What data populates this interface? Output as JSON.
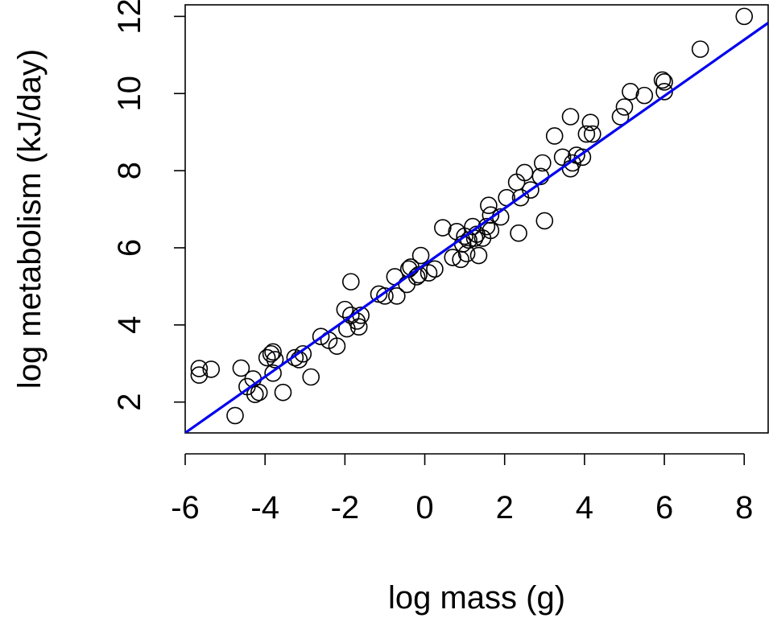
{
  "chart_data": {
    "type": "scatter",
    "title": "",
    "xlabel": "log mass (g)",
    "ylabel": "log metabolism (kJ/day)",
    "xlim": [
      -6.0,
      8.6
    ],
    "ylim": [
      1.2,
      12.3
    ],
    "x_ticks": [
      -6,
      -4,
      -2,
      0,
      2,
      4,
      6,
      8
    ],
    "x_tick_labels": [
      "-6",
      "-4",
      "-2",
      "0",
      "2",
      "4",
      "6",
      "8"
    ],
    "y_ticks": [
      2,
      4,
      6,
      8,
      10,
      12
    ],
    "y_tick_labels": [
      "2",
      "4",
      "6",
      "8",
      "10",
      "12"
    ],
    "grid": false,
    "legend": "none",
    "point_style": "open-circle",
    "point_color": "#000000",
    "fit_line": {
      "color": "#0000ee",
      "intercept": 5.57,
      "slope": 0.728,
      "x_from": -6.0,
      "x_to": 8.6
    },
    "points": [
      {
        "x": -5.65,
        "y": 2.87
      },
      {
        "x": -5.65,
        "y": 2.7
      },
      {
        "x": -5.35,
        "y": 2.85
      },
      {
        "x": -4.75,
        "y": 1.65
      },
      {
        "x": -4.6,
        "y": 2.88
      },
      {
        "x": -4.45,
        "y": 2.4
      },
      {
        "x": -4.3,
        "y": 2.6
      },
      {
        "x": -4.25,
        "y": 2.2
      },
      {
        "x": -4.15,
        "y": 2.25
      },
      {
        "x": -3.95,
        "y": 3.15
      },
      {
        "x": -3.85,
        "y": 3.25
      },
      {
        "x": -3.8,
        "y": 3.3
      },
      {
        "x": -3.8,
        "y": 2.75
      },
      {
        "x": -3.75,
        "y": 3.1
      },
      {
        "x": -3.55,
        "y": 2.25
      },
      {
        "x": -3.25,
        "y": 3.15
      },
      {
        "x": -3.15,
        "y": 3.1
      },
      {
        "x": -3.05,
        "y": 3.25
      },
      {
        "x": -2.85,
        "y": 2.65
      },
      {
        "x": -2.6,
        "y": 3.7
      },
      {
        "x": -2.4,
        "y": 3.6
      },
      {
        "x": -2.2,
        "y": 3.45
      },
      {
        "x": -2.0,
        "y": 4.4
      },
      {
        "x": -1.95,
        "y": 3.9
      },
      {
        "x": -1.85,
        "y": 4.25
      },
      {
        "x": -1.85,
        "y": 5.12
      },
      {
        "x": -1.7,
        "y": 4.1
      },
      {
        "x": -1.65,
        "y": 3.95
      },
      {
        "x": -1.6,
        "y": 4.25
      },
      {
        "x": -1.15,
        "y": 4.8
      },
      {
        "x": -1.0,
        "y": 4.75
      },
      {
        "x": -0.75,
        "y": 5.25
      },
      {
        "x": -0.7,
        "y": 4.75
      },
      {
        "x": -0.45,
        "y": 5.05
      },
      {
        "x": -0.4,
        "y": 5.45
      },
      {
        "x": -0.35,
        "y": 5.5
      },
      {
        "x": -0.2,
        "y": 5.25
      },
      {
        "x": -0.15,
        "y": 5.3
      },
      {
        "x": -0.1,
        "y": 5.8
      },
      {
        "x": 0.1,
        "y": 5.35
      },
      {
        "x": 0.25,
        "y": 5.45
      },
      {
        "x": 0.45,
        "y": 6.52
      },
      {
        "x": 0.7,
        "y": 5.75
      },
      {
        "x": 0.8,
        "y": 6.42
      },
      {
        "x": 0.9,
        "y": 5.7
      },
      {
        "x": 0.95,
        "y": 6.1
      },
      {
        "x": 1.0,
        "y": 6.3
      },
      {
        "x": 1.05,
        "y": 5.85
      },
      {
        "x": 1.1,
        "y": 6.2
      },
      {
        "x": 1.2,
        "y": 6.55
      },
      {
        "x": 1.25,
        "y": 6.25
      },
      {
        "x": 1.3,
        "y": 6.35
      },
      {
        "x": 1.35,
        "y": 5.8
      },
      {
        "x": 1.45,
        "y": 6.25
      },
      {
        "x": 1.55,
        "y": 6.55
      },
      {
        "x": 1.6,
        "y": 7.1
      },
      {
        "x": 1.65,
        "y": 6.85
      },
      {
        "x": 1.65,
        "y": 6.45
      },
      {
        "x": 1.9,
        "y": 6.8
      },
      {
        "x": 2.05,
        "y": 7.3
      },
      {
        "x": 2.3,
        "y": 7.7
      },
      {
        "x": 2.35,
        "y": 6.38
      },
      {
        "x": 2.4,
        "y": 7.3
      },
      {
        "x": 2.5,
        "y": 7.95
      },
      {
        "x": 2.65,
        "y": 7.5
      },
      {
        "x": 2.9,
        "y": 7.85
      },
      {
        "x": 2.95,
        "y": 8.2
      },
      {
        "x": 3.0,
        "y": 6.7
      },
      {
        "x": 3.25,
        "y": 8.9
      },
      {
        "x": 3.45,
        "y": 8.35
      },
      {
        "x": 3.65,
        "y": 9.4
      },
      {
        "x": 3.65,
        "y": 8.05
      },
      {
        "x": 3.7,
        "y": 8.2
      },
      {
        "x": 3.8,
        "y": 8.4
      },
      {
        "x": 3.95,
        "y": 8.35
      },
      {
        "x": 4.05,
        "y": 8.95
      },
      {
        "x": 4.15,
        "y": 9.25
      },
      {
        "x": 4.2,
        "y": 8.95
      },
      {
        "x": 4.9,
        "y": 9.4
      },
      {
        "x": 5.0,
        "y": 9.65
      },
      {
        "x": 5.15,
        "y": 10.05
      },
      {
        "x": 5.5,
        "y": 9.95
      },
      {
        "x": 5.95,
        "y": 10.35
      },
      {
        "x": 6.0,
        "y": 10.3
      },
      {
        "x": 6.0,
        "y": 10.05
      },
      {
        "x": 6.9,
        "y": 11.15
      },
      {
        "x": 8.0,
        "y": 12.0
      }
    ]
  }
}
